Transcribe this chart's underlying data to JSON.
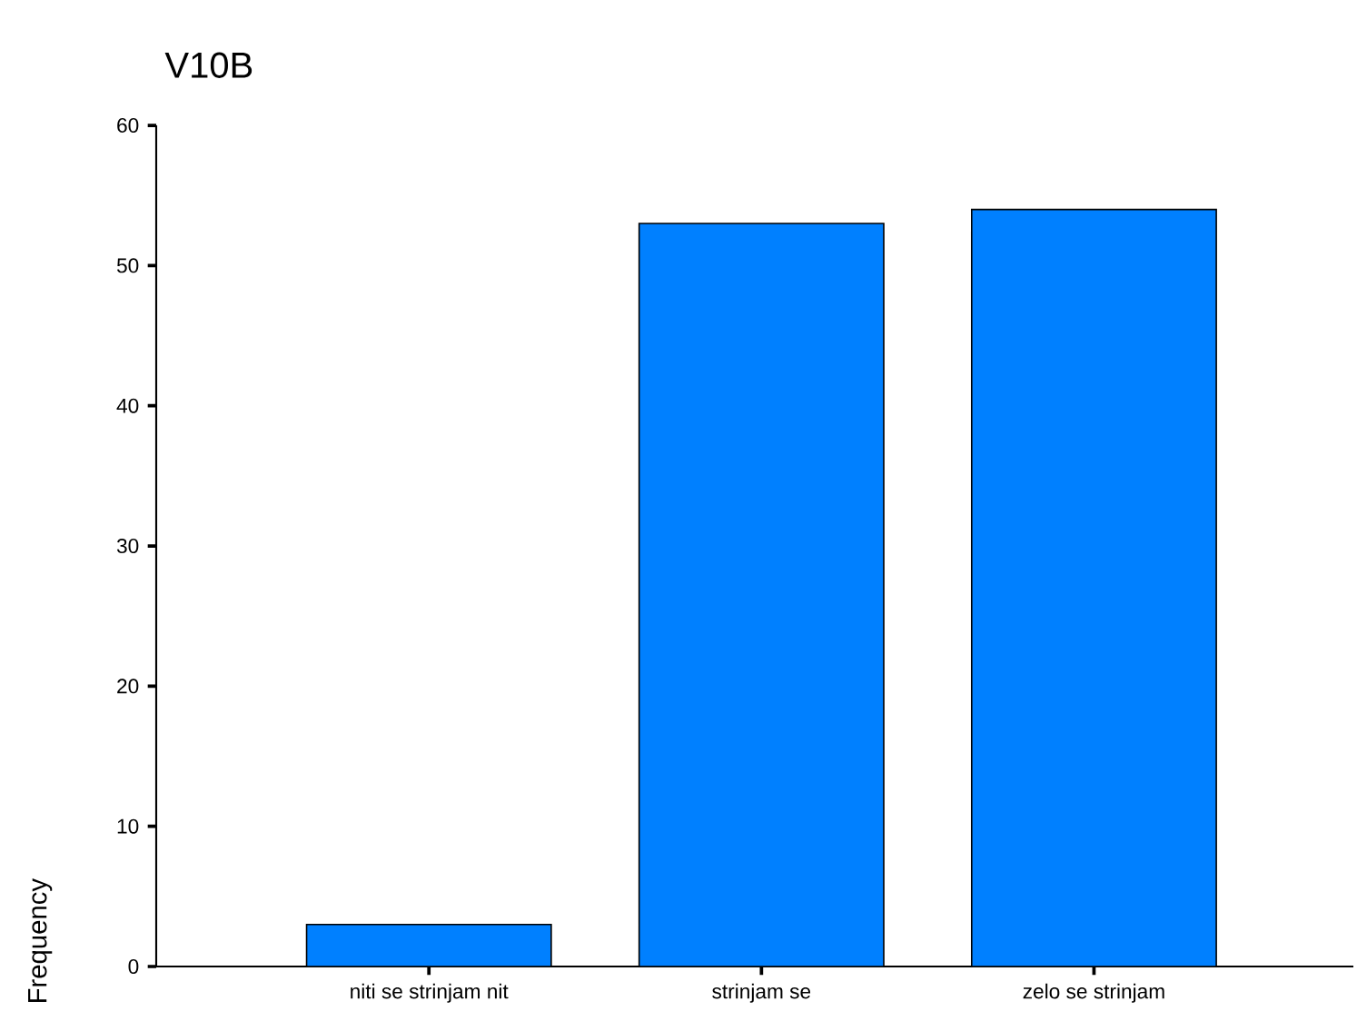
{
  "chart_data": {
    "type": "bar",
    "title": "V10B",
    "ylabel": "Frequency",
    "categories": [
      "niti se strinjam nit",
      "strinjam se",
      "zelo se strinjam"
    ],
    "values": [
      3,
      53,
      54
    ],
    "color": "#0080ff",
    "ylim": [
      0,
      60
    ],
    "yticks": [
      0,
      10,
      20,
      30,
      40,
      50,
      60
    ]
  }
}
